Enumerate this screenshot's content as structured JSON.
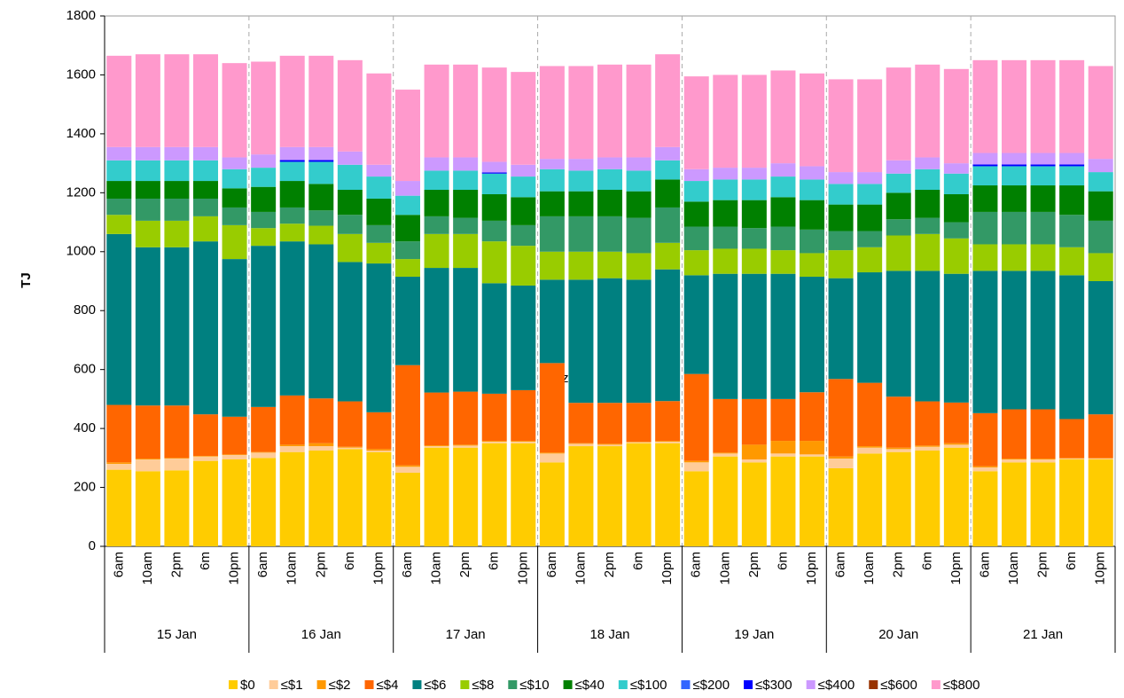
{
  "chart_data": {
    "type": "stacked_bar",
    "y_label": "TJ",
    "annotation": "z",
    "categories": [
      "6am",
      "10am",
      "2pm",
      "6m",
      "10pm",
      "6am",
      "10am",
      "2pm",
      "6m",
      "10pm",
      "6am",
      "10am",
      "2pm",
      "6m",
      "10pm",
      "6am",
      "10am",
      "2pm",
      "6m",
      "10pm",
      "6am",
      "10am",
      "2pm",
      "6m",
      "10pm",
      "6am",
      "10am",
      "2pm",
      "6m",
      "10pm",
      "6am",
      "10am",
      "2pm",
      "6m",
      "10pm"
    ],
    "groups": [
      "15 Jan",
      "16 Jan",
      "17 Jan",
      "18 Jan",
      "19 Jan",
      "20 Jan",
      "21 Jan"
    ],
    "ylim": [
      0,
      1800
    ],
    "yticks": [
      0,
      200,
      400,
      600,
      800,
      1000,
      1200,
      1400,
      1600,
      1800
    ],
    "series": [
      {
        "name": "$0",
        "color": "#FFCC00",
        "values": [
          260,
          255,
          258,
          290,
          295,
          300,
          320,
          325,
          330,
          320,
          250,
          335,
          335,
          350,
          350,
          285,
          340,
          340,
          350,
          350,
          255,
          305,
          285,
          305,
          305,
          265,
          315,
          320,
          325,
          335,
          255,
          285,
          285,
          295,
          295
        ]
      },
      {
        "name": "≤$1",
        "color": "#FFCC99",
        "values": [
          20,
          40,
          40,
          15,
          15,
          18,
          20,
          15,
          5,
          5,
          20,
          5,
          7,
          5,
          5,
          30,
          8,
          5,
          3,
          5,
          30,
          10,
          10,
          10,
          7,
          33,
          20,
          10,
          13,
          10,
          13,
          10,
          10,
          3,
          3
        ]
      },
      {
        "name": "≤$2",
        "color": "#FF9900",
        "values": [
          5,
          3,
          2,
          2,
          2,
          2,
          5,
          10,
          3,
          5,
          5,
          3,
          3,
          3,
          3,
          3,
          2,
          3,
          2,
          3,
          5,
          3,
          50,
          43,
          46,
          7,
          5,
          5,
          4,
          5,
          4,
          3,
          3,
          2,
          2
        ]
      },
      {
        "name": "≤$4",
        "color": "#FF6600",
        "values": [
          195,
          180,
          178,
          141,
          128,
          153,
          167,
          152,
          154,
          125,
          340,
          179,
          180,
          160,
          172,
          304,
          137,
          139,
          132,
          135,
          295,
          182,
          155,
          142,
          165,
          263,
          215,
          173,
          150,
          138,
          180,
          167,
          167,
          132,
          148
        ]
      },
      {
        "name": "≤$6",
        "color": "#008080",
        "values": [
          580,
          537,
          537,
          587,
          535,
          547,
          523,
          523,
          473,
          505,
          300,
          423,
          420,
          375,
          355,
          283,
          418,
          423,
          418,
          447,
          335,
          425,
          425,
          425,
          392,
          342,
          375,
          427,
          443,
          437,
          483,
          470,
          470,
          488,
          452
        ]
      },
      {
        "name": "≤$8",
        "color": "#99CC00",
        "values": [
          65,
          90,
          90,
          85,
          115,
          60,
          60,
          63,
          95,
          70,
          60,
          115,
          115,
          142,
          135,
          95,
          95,
          90,
          90,
          90,
          85,
          85,
          85,
          80,
          80,
          95,
          85,
          120,
          125,
          120,
          90,
          90,
          90,
          95,
          95
        ]
      },
      {
        "name": "≤$10",
        "color": "#339966",
        "values": [
          55,
          75,
          75,
          60,
          60,
          55,
          55,
          52,
          65,
          60,
          60,
          60,
          55,
          70,
          70,
          120,
          120,
          120,
          120,
          120,
          80,
          75,
          70,
          80,
          80,
          65,
          55,
          55,
          55,
          55,
          110,
          110,
          110,
          110,
          110
        ]
      },
      {
        "name": "≤$40",
        "color": "#008000",
        "values": [
          60,
          60,
          60,
          60,
          65,
          85,
          90,
          90,
          85,
          90,
          90,
          90,
          95,
          90,
          95,
          85,
          85,
          90,
          90,
          95,
          85,
          90,
          95,
          100,
          100,
          90,
          90,
          90,
          95,
          95,
          90,
          90,
          90,
          100,
          100
        ]
      },
      {
        "name": "≤$100",
        "color": "#33CCCC",
        "values": [
          70,
          70,
          70,
          70,
          65,
          65,
          65,
          75,
          85,
          75,
          65,
          65,
          65,
          70,
          70,
          75,
          70,
          70,
          70,
          65,
          70,
          70,
          70,
          70,
          70,
          70,
          70,
          65,
          70,
          70,
          65,
          65,
          65,
          65,
          65
        ]
      },
      {
        "name": "≤$200",
        "color": "#3366FF",
        "values": [
          0,
          0,
          0,
          0,
          0,
          0,
          0,
          0,
          0,
          0,
          0,
          0,
          0,
          0,
          0,
          0,
          0,
          0,
          0,
          0,
          0,
          0,
          0,
          0,
          0,
          0,
          0,
          0,
          0,
          0,
          0,
          0,
          0,
          0,
          0
        ]
      },
      {
        "name": "≤$300",
        "color": "#0000FF",
        "values": [
          0,
          0,
          0,
          0,
          0,
          0,
          6,
          6,
          0,
          0,
          0,
          0,
          0,
          4,
          0,
          0,
          0,
          0,
          0,
          0,
          0,
          0,
          0,
          0,
          0,
          0,
          0,
          0,
          0,
          0,
          6,
          6,
          6,
          6,
          0
        ]
      },
      {
        "name": "≤$400",
        "color": "#CC99FF",
        "values": [
          45,
          45,
          45,
          45,
          40,
          45,
          44,
          44,
          45,
          40,
          50,
          45,
          45,
          36,
          40,
          35,
          40,
          40,
          45,
          45,
          40,
          40,
          40,
          45,
          45,
          40,
          40,
          45,
          40,
          35,
          39,
          39,
          39,
          39,
          45
        ]
      },
      {
        "name": "≤$600",
        "color": "#993300",
        "values": [
          0,
          0,
          0,
          0,
          0,
          0,
          0,
          0,
          0,
          0,
          0,
          0,
          0,
          0,
          0,
          0,
          0,
          0,
          0,
          0,
          0,
          0,
          0,
          0,
          0,
          0,
          0,
          0,
          0,
          0,
          0,
          0,
          0,
          0,
          0
        ]
      },
      {
        "name": "≤$800",
        "color": "#FF99CC",
        "values": [
          310,
          315,
          315,
          315,
          320,
          315,
          310,
          310,
          310,
          310,
          310,
          315,
          315,
          320,
          315,
          315,
          315,
          315,
          315,
          315,
          315,
          315,
          315,
          315,
          315,
          315,
          315,
          315,
          315,
          320,
          315,
          315,
          315,
          315,
          315
        ]
      }
    ]
  }
}
